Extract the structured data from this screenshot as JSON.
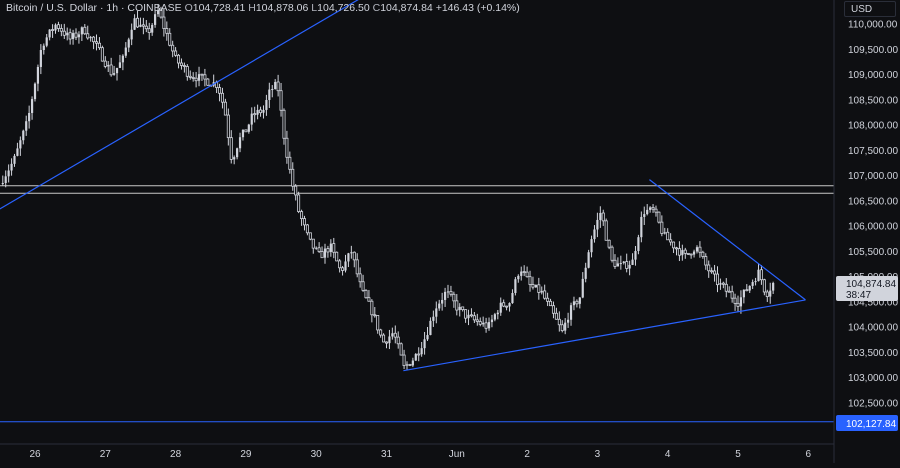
{
  "legend": {
    "symbol": "Bitcoin / U.S. Dollar · 1h · COINBASE",
    "open_label": "O",
    "open": "104,728.41",
    "high_label": "H",
    "high": "104,878.06",
    "low_label": "L",
    "low": "104,726.50",
    "close_label": "C",
    "close": "104,874.84",
    "change": "+146.43 (+0.14%)"
  },
  "currency": "USD",
  "price_tag": {
    "price": "104,874.84",
    "countdown": "38:47"
  },
  "level_tag": "102,127.84",
  "colors": {
    "background": "#0e0f12",
    "candle": "#d1d4dc",
    "trendline": "#2962ff",
    "level": "#c8c8c8",
    "text": "#d1d4dc"
  },
  "chart_data": {
    "type": "candlestick",
    "y_axis": {
      "ticks": [
        "110,000.00",
        "109,500.00",
        "109,000.00",
        "108,500.00",
        "108,000.00",
        "107,500.00",
        "107,000.00",
        "106,500.00",
        "106,000.00",
        "105,500.00",
        "105,000.00",
        "104,500.00",
        "104,000.00",
        "103,500.00",
        "103,000.00",
        "102,500.00"
      ],
      "tick_values": [
        110000,
        109500,
        109000,
        108500,
        108000,
        107500,
        107000,
        106500,
        106000,
        105500,
        105000,
        104500,
        104000,
        103500,
        103000,
        102500
      ],
      "range": [
        101900,
        110250
      ],
      "position": "right"
    },
    "x_axis": {
      "ticks": [
        "26",
        "27",
        "28",
        "29",
        "30",
        "31",
        "Jun",
        "2",
        "3",
        "4",
        "5",
        "6"
      ],
      "tick_index": [
        0,
        1,
        2,
        3,
        4,
        5,
        6,
        7,
        8,
        9,
        10,
        11
      ],
      "unit": "days from May 26"
    },
    "grid": false,
    "close_path": [
      [
        -0.5,
        106850
      ],
      [
        -0.3,
        107300
      ],
      [
        -0.1,
        108100
      ],
      [
        0.1,
        109600
      ],
      [
        0.3,
        110000
      ],
      [
        0.5,
        109700
      ],
      [
        0.7,
        109900
      ],
      [
        0.9,
        109500
      ],
      [
        1.1,
        109000
      ],
      [
        1.25,
        109300
      ],
      [
        1.4,
        110100
      ],
      [
        1.6,
        109800
      ],
      [
        1.75,
        110250
      ],
      [
        1.9,
        109700
      ],
      [
        2.0,
        109300
      ],
      [
        2.2,
        109000
      ],
      [
        2.4,
        108900
      ],
      [
        2.6,
        108800
      ],
      [
        2.7,
        108300
      ],
      [
        2.8,
        107300
      ],
      [
        2.9,
        107700
      ],
      [
        3.0,
        107900
      ],
      [
        3.1,
        108200
      ],
      [
        3.25,
        108300
      ],
      [
        3.35,
        108700
      ],
      [
        3.45,
        108800
      ],
      [
        3.55,
        107700
      ],
      [
        3.65,
        106900
      ],
      [
        3.75,
        106300
      ],
      [
        3.9,
        105700
      ],
      [
        4.05,
        105400
      ],
      [
        4.2,
        105600
      ],
      [
        4.35,
        105100
      ],
      [
        4.5,
        105500
      ],
      [
        4.65,
        104700
      ],
      [
        4.8,
        104300
      ],
      [
        4.95,
        103700
      ],
      [
        5.1,
        103900
      ],
      [
        5.25,
        103200
      ],
      [
        5.4,
        103400
      ],
      [
        5.55,
        103800
      ],
      [
        5.7,
        104400
      ],
      [
        5.85,
        104700
      ],
      [
        6.0,
        104400
      ],
      [
        6.15,
        104200
      ],
      [
        6.3,
        104100
      ],
      [
        6.45,
        104000
      ],
      [
        6.6,
        104400
      ],
      [
        6.75,
        104500
      ],
      [
        6.9,
        105200
      ],
      [
        7.05,
        104800
      ],
      [
        7.2,
        104700
      ],
      [
        7.35,
        104300
      ],
      [
        7.5,
        103900
      ],
      [
        7.6,
        104300
      ],
      [
        7.75,
        104600
      ],
      [
        7.9,
        105700
      ],
      [
        8.05,
        106300
      ],
      [
        8.2,
        105300
      ],
      [
        8.35,
        105200
      ],
      [
        8.5,
        105300
      ],
      [
        8.65,
        106300
      ],
      [
        8.8,
        106300
      ],
      [
        8.95,
        105800
      ],
      [
        9.1,
        105600
      ],
      [
        9.25,
        105400
      ],
      [
        9.4,
        105600
      ],
      [
        9.55,
        105200
      ],
      [
        9.7,
        104900
      ],
      [
        9.85,
        104700
      ],
      [
        10.0,
        104500
      ],
      [
        10.15,
        104800
      ],
      [
        10.3,
        105100
      ],
      [
        10.4,
        104650
      ],
      [
        10.5,
        104875
      ]
    ],
    "trendlines": [
      {
        "name": "rising-resistance",
        "from": [
          -0.55,
          106300
        ],
        "to": [
          5.85,
          111500
        ]
      },
      {
        "name": "descending-resistance",
        "from": [
          8.74,
          106920
        ],
        "to": [
          10.96,
          104540
        ]
      },
      {
        "name": "rising-support",
        "from": [
          5.24,
          103140
        ],
        "to": [
          10.96,
          104540
        ]
      }
    ],
    "horizontal_levels": [
      106800,
      106650,
      102127.84
    ],
    "last_price": 104874.84
  }
}
